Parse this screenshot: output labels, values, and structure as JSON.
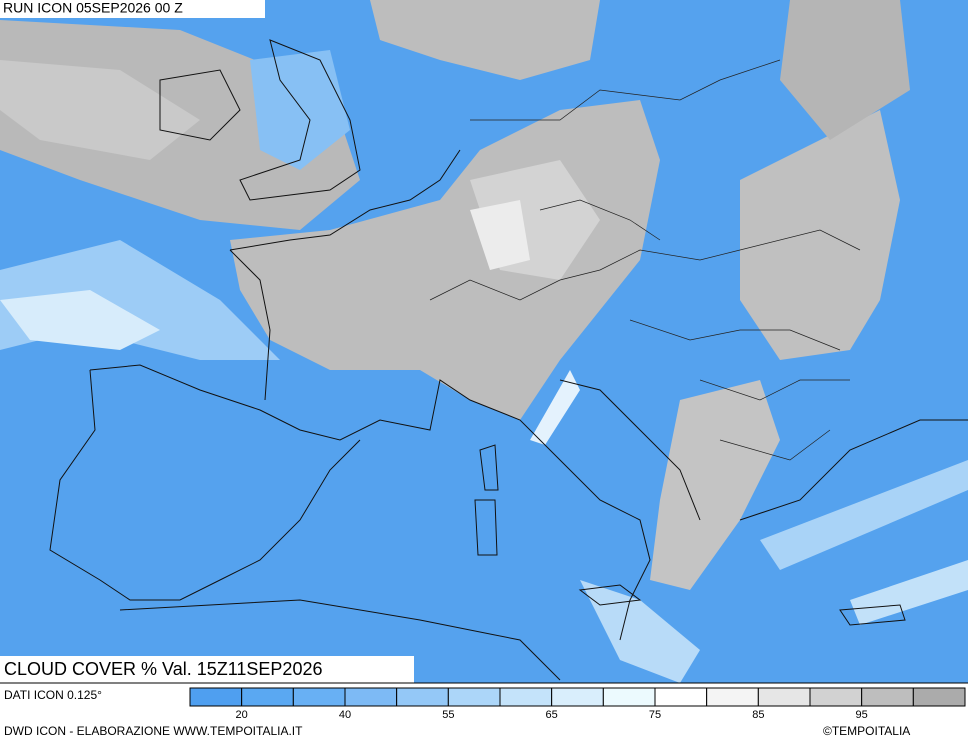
{
  "header": {
    "run": "RUN ICON 05SEP2026 00 Z"
  },
  "map": {
    "title": "CLOUD COVER % Val. 15Z11SEP2026"
  },
  "legend": {
    "source": "DATI ICON 0.125°",
    "colors": [
      "#4f9ff0",
      "#5aa8f2",
      "#68b0f4",
      "#7dbaf5",
      "#94c8f7",
      "#acd6f9",
      "#c4e3fa",
      "#d9eefc",
      "#ecfafe",
      "#ffffff",
      "#f4f4f4",
      "#e6e6e6",
      "#d2d2d2",
      "#bebebe",
      "#ababab"
    ],
    "ticks": [
      20,
      40,
      55,
      65,
      75,
      85,
      95
    ]
  },
  "footer": {
    "credit": "DWD ICON - ELABORAZIONE WWW.TEMPOITALIA.IT",
    "copyright": "©TEMPOITALIA"
  }
}
